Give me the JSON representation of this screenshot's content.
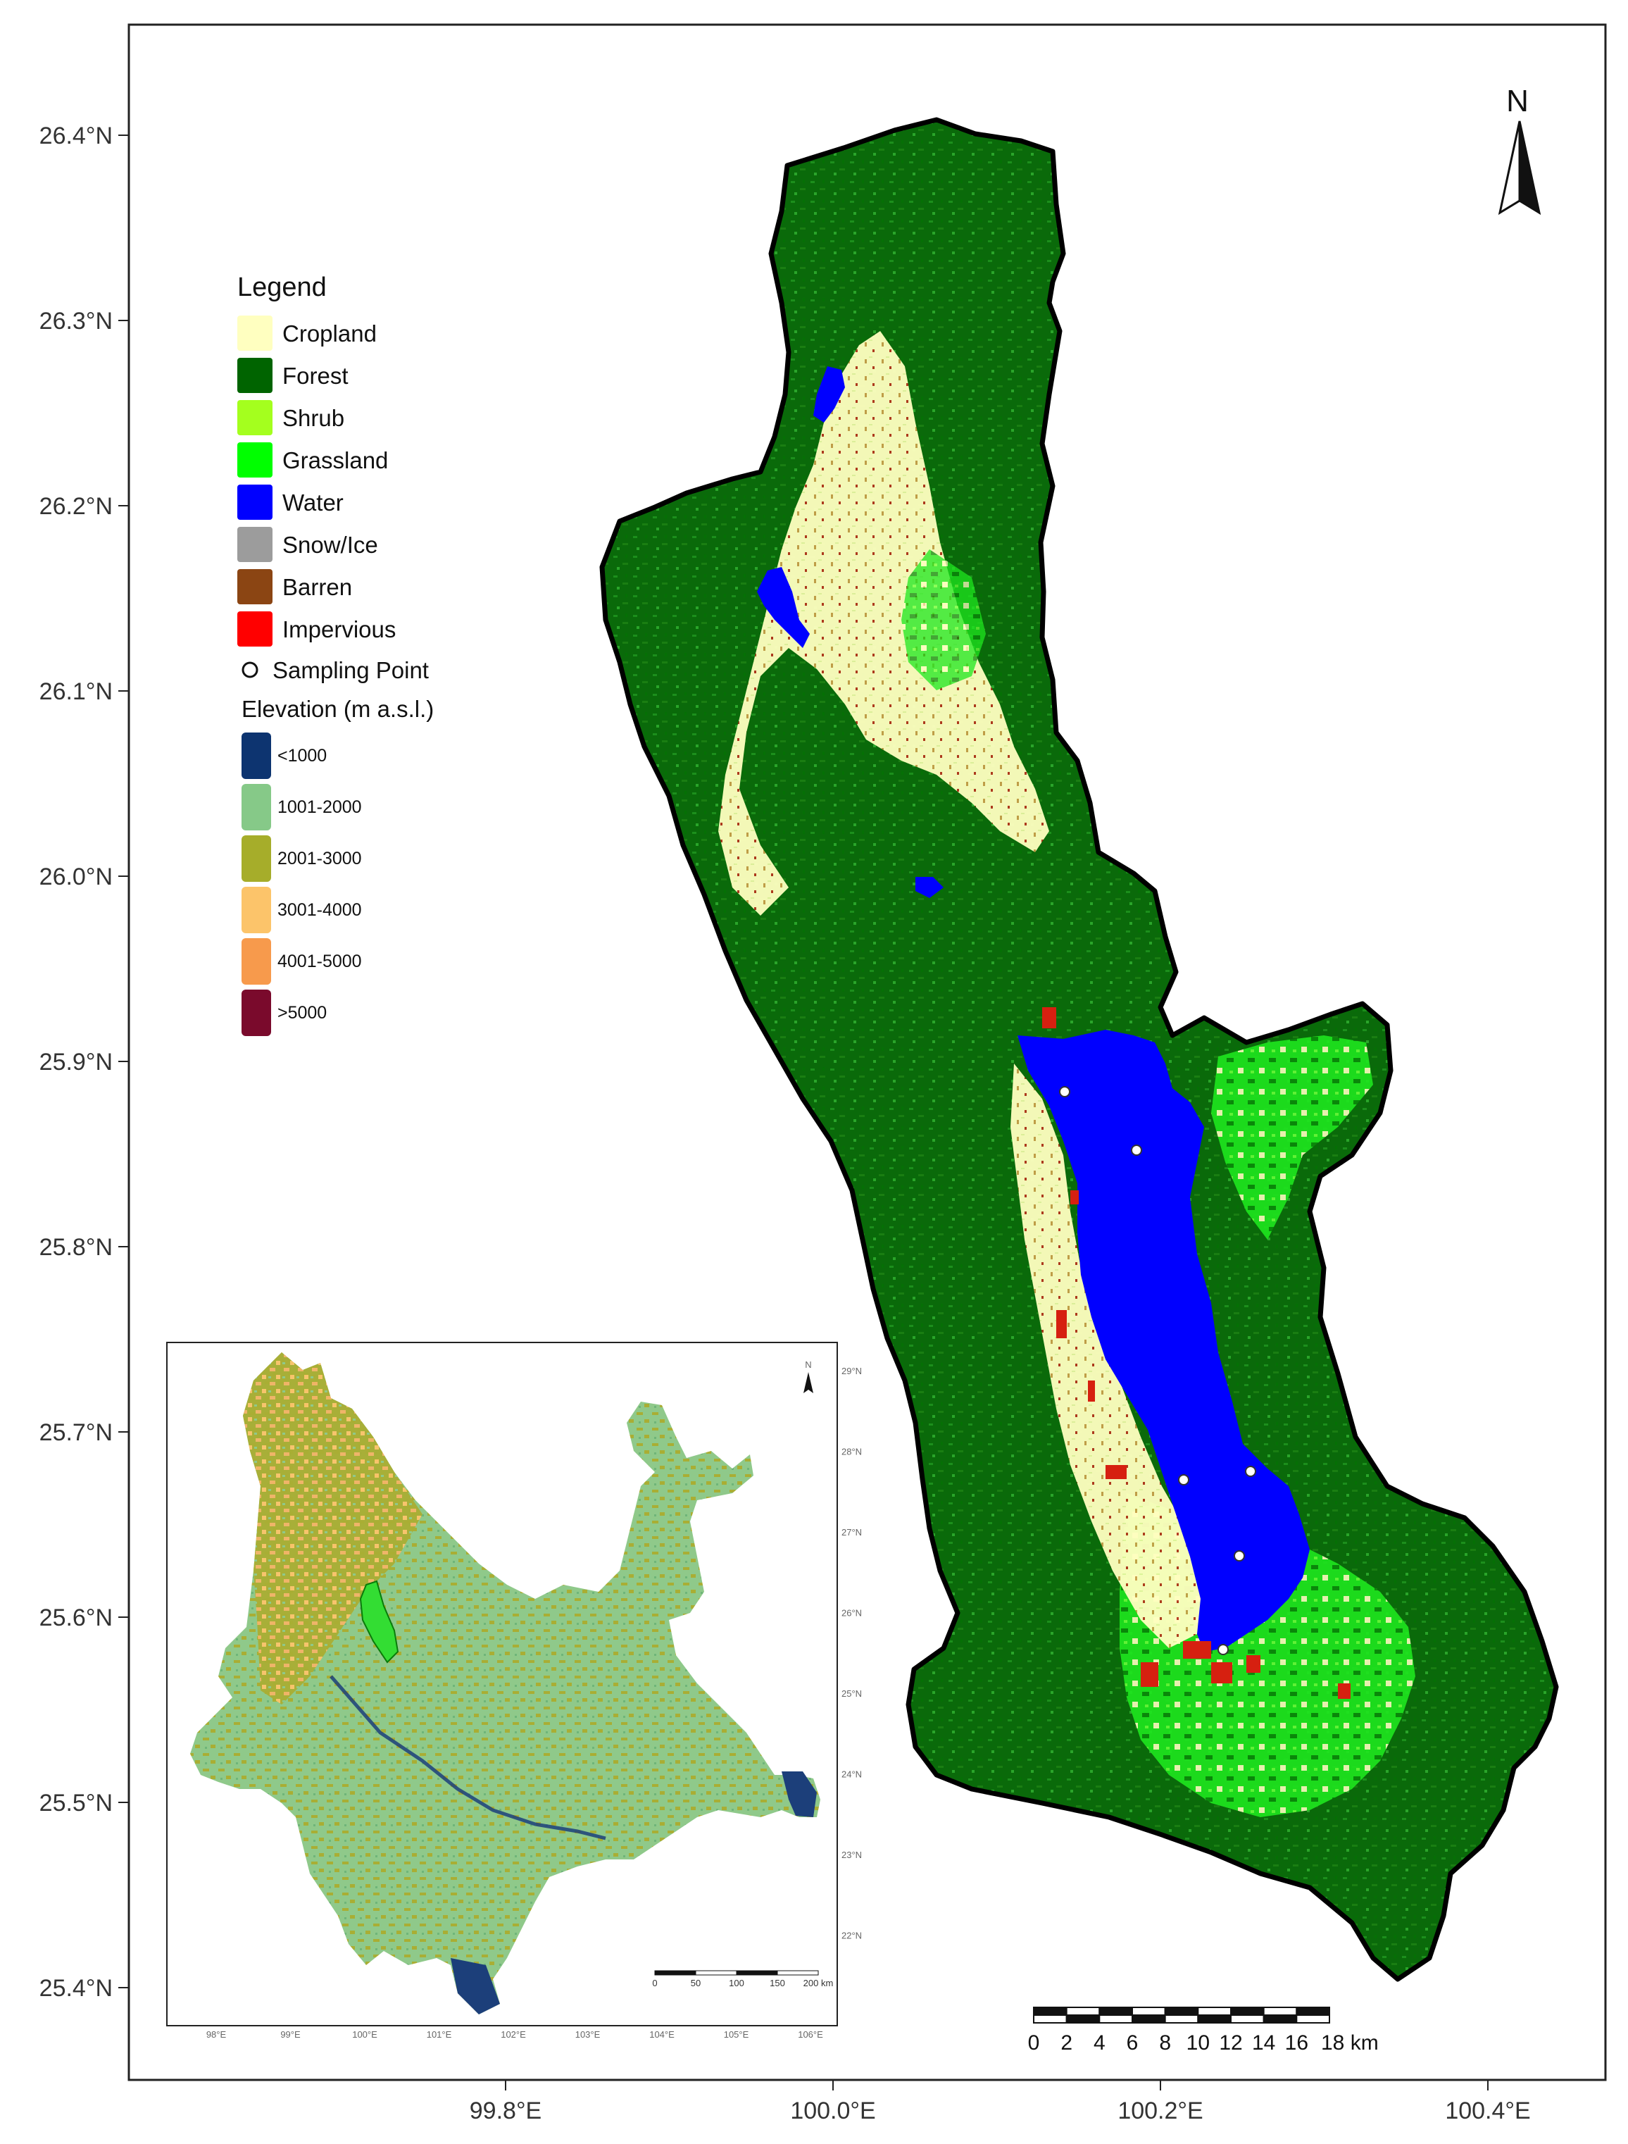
{
  "map": {
    "lat_ticks": [
      "26.4°N",
      "26.3°N",
      "26.2°N",
      "26.1°N",
      "26.0°N",
      "25.9°N",
      "25.8°N",
      "25.7°N",
      "25.6°N",
      "25.5°N",
      "25.4°N"
    ],
    "lon_ticks": [
      "99.8°E",
      "100.0°E",
      "100.2°E",
      "100.4°E"
    ],
    "north_label": "N",
    "scale_bar": {
      "labels": [
        "0",
        "2",
        "4",
        "6",
        "8",
        "10",
        "12",
        "14",
        "16",
        "18 km"
      ]
    }
  },
  "legend": {
    "title": "Legend",
    "landcover": [
      {
        "label": "Cropland",
        "color": "#ffffc0"
      },
      {
        "label": "Forest",
        "color": "#006400"
      },
      {
        "label": "Shrub",
        "color": "#a4ff1e"
      },
      {
        "label": "Grassland",
        "color": "#00ff00"
      },
      {
        "label": "Water",
        "color": "#0000ff"
      },
      {
        "label": "Snow/Ice",
        "color": "#9c9c9c"
      },
      {
        "label": "Barren",
        "color": "#8b4513"
      },
      {
        "label": "Impervious",
        "color": "#ff0000"
      }
    ],
    "sampling_point_label": "Sampling Point",
    "elevation_title": "Elevation (m a.s.l.)",
    "elevation": [
      {
        "label": "<1000",
        "color": "#0d3470"
      },
      {
        "label": "1001-2000",
        "color": "#86c988"
      },
      {
        "label": "2001-3000",
        "color": "#a6ad2a"
      },
      {
        "label": "3001-4000",
        "color": "#fcc46a"
      },
      {
        "label": "4001-5000",
        "color": "#f79a4c"
      },
      {
        "label": ">5000",
        "color": "#7a0a2c"
      }
    ]
  },
  "inset": {
    "lat_ticks": [
      "29°N",
      "28°N",
      "27°N",
      "26°N",
      "25°N",
      "24°N",
      "23°N",
      "22°N"
    ],
    "lon_ticks": [
      "98°E",
      "99°E",
      "100°E",
      "101°E",
      "102°E",
      "103°E",
      "104°E",
      "105°E",
      "106°E"
    ],
    "north_label": "N",
    "scale_labels": [
      "0",
      "50",
      "100",
      "150",
      "200 km"
    ]
  }
}
